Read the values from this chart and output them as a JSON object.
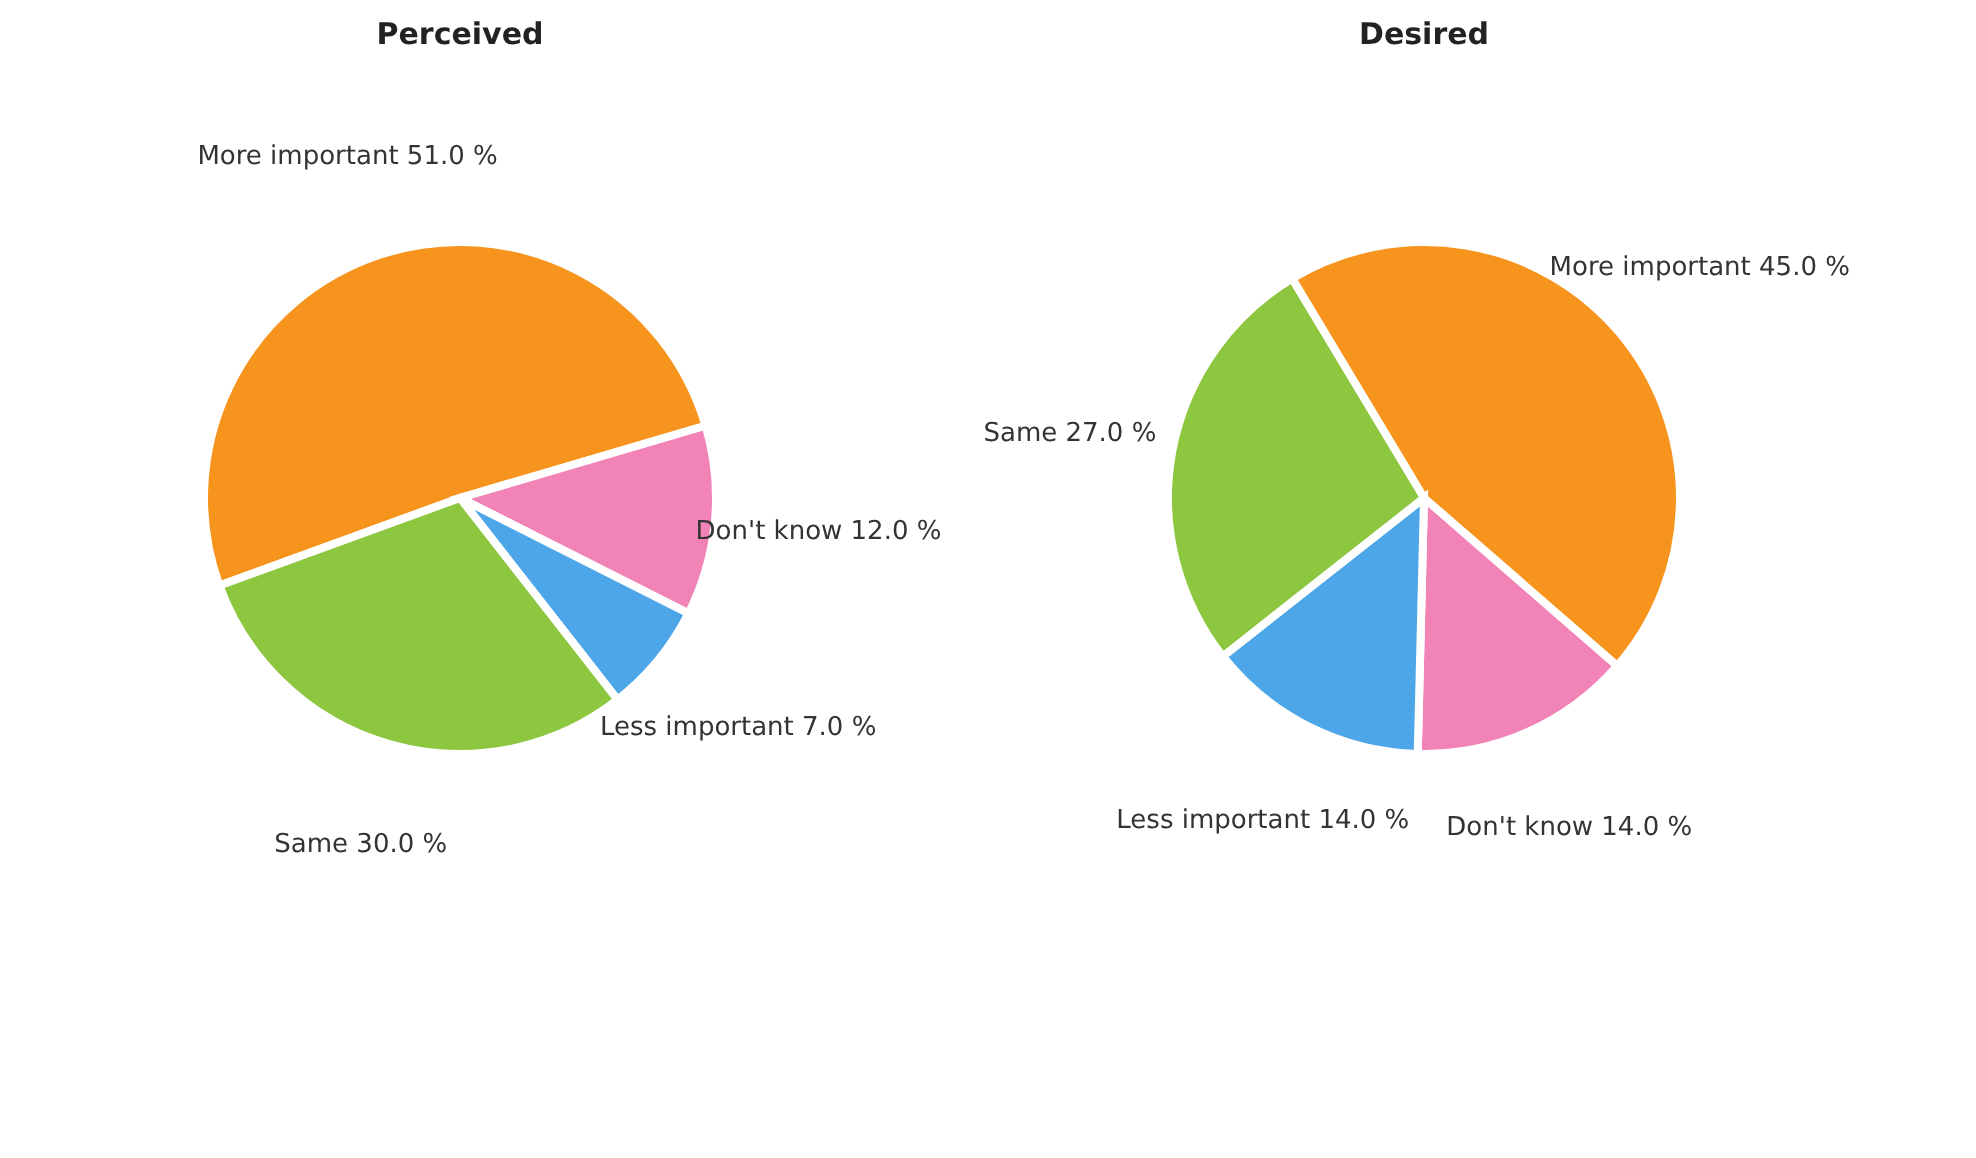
{
  "chart_data": [
    {
      "type": "pie",
      "title": "Perceived",
      "categories": [
        "More important",
        "Don't know",
        "Less important",
        "Same"
      ],
      "values": [
        51.0,
        12.0,
        7.0,
        30.0
      ],
      "colors": [
        "#f7941d",
        "#f283b6",
        "#4da6e8",
        "#8dc63f"
      ],
      "value_labels": [
        "51.0 %",
        "12.0 %",
        "7.0 %",
        "30.0 %"
      ],
      "legend": false
    },
    {
      "type": "pie",
      "title": "Desired",
      "categories": [
        "More important",
        "Don't know",
        "Less important",
        "Same"
      ],
      "values": [
        45.0,
        14.0,
        14.0,
        27.0
      ],
      "colors": [
        "#f7941d",
        "#f283b6",
        "#4da6e8",
        "#8dc63f"
      ],
      "value_labels": [
        "45.0 %",
        "14.0 %",
        "14.0 %",
        "27.0 %"
      ],
      "legend": false
    }
  ]
}
